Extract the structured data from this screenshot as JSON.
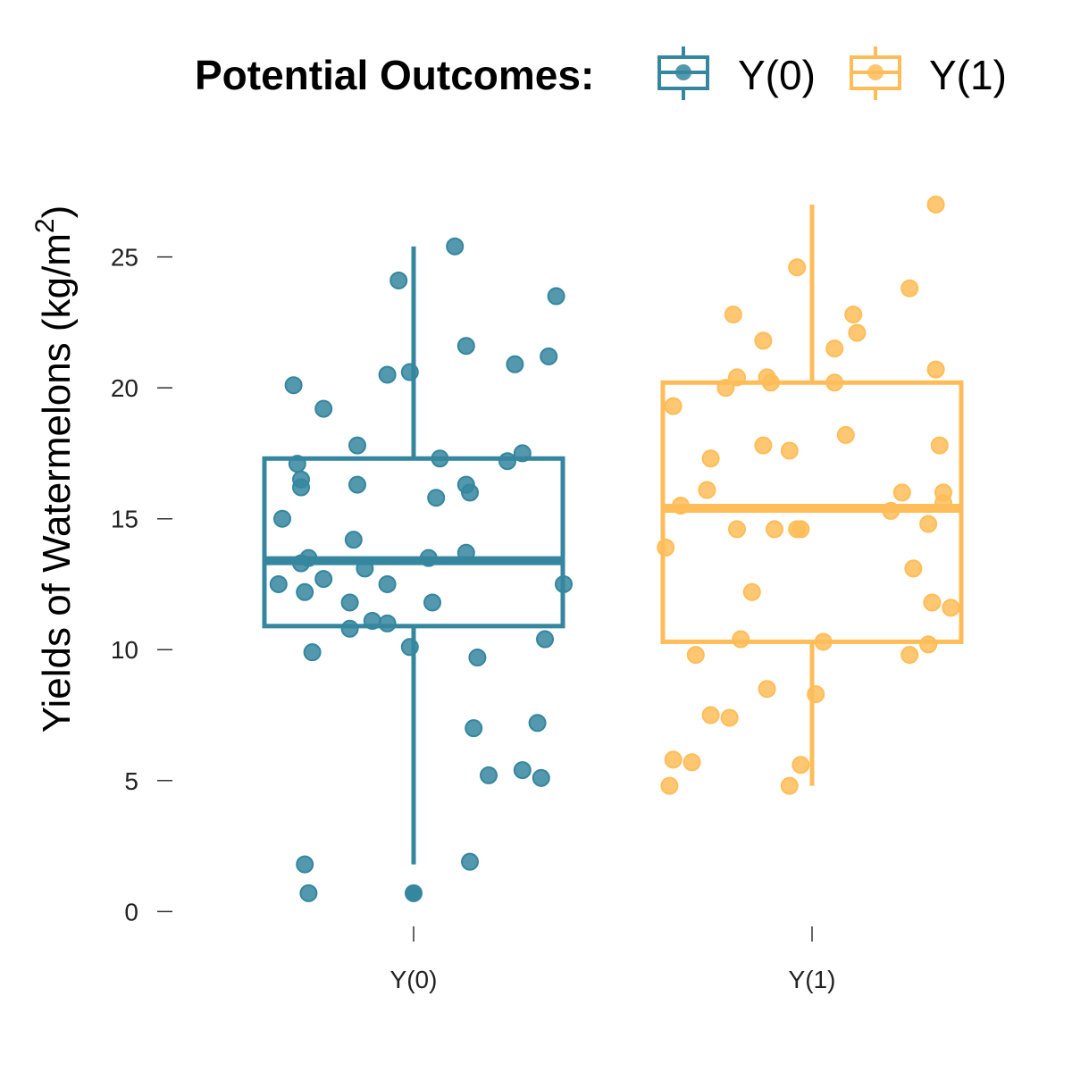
{
  "chart_data": {
    "type": "box",
    "legend": {
      "title": "Potential Outcomes:",
      "placement": "top",
      "entries": [
        "Y(0)",
        "Y(1)"
      ]
    },
    "ylabel": "Yields of Watermelons (kg/m",
    "ylabel_superscript": "2",
    "ylabel_close": ")",
    "xlabel": "",
    "categories": [
      "Y(0)",
      "Y(1)"
    ],
    "ylim": [
      -0.5,
      28.5
    ],
    "yticks": [
      0,
      5,
      10,
      15,
      20,
      25
    ],
    "grid": false,
    "series": [
      {
        "name": "Y(0)",
        "color": "#35869F",
        "box": {
          "whisker_low": 1.8,
          "q1": 10.9,
          "median": 13.4,
          "q3": 17.3,
          "whisker_high": 25.4
        },
        "outliers": [
          0.7
        ],
        "points": [
          {
            "jitter": -0.32,
            "y": 20.1
          },
          {
            "jitter": -0.24,
            "y": 19.2
          },
          {
            "jitter": -0.31,
            "y": 17.1
          },
          {
            "jitter": -0.3,
            "y": 16.5
          },
          {
            "jitter": -0.3,
            "y": 16.2
          },
          {
            "jitter": -0.35,
            "y": 15.0
          },
          {
            "jitter": -0.3,
            "y": 13.3
          },
          {
            "jitter": -0.28,
            "y": 13.5
          },
          {
            "jitter": -0.36,
            "y": 12.5
          },
          {
            "jitter": -0.24,
            "y": 12.7
          },
          {
            "jitter": -0.29,
            "y": 12.2
          },
          {
            "jitter": -0.27,
            "y": 9.9
          },
          {
            "jitter": -0.29,
            "y": 1.8
          },
          {
            "jitter": -0.28,
            "y": 0.7
          },
          {
            "jitter": -0.15,
            "y": 17.8
          },
          {
            "jitter": -0.15,
            "y": 16.3
          },
          {
            "jitter": -0.16,
            "y": 14.2
          },
          {
            "jitter": -0.13,
            "y": 13.1
          },
          {
            "jitter": -0.17,
            "y": 11.8
          },
          {
            "jitter": -0.17,
            "y": 10.8
          },
          {
            "jitter": -0.11,
            "y": 11.1
          },
          {
            "jitter": -0.07,
            "y": 11.0
          },
          {
            "jitter": -0.07,
            "y": 12.5
          },
          {
            "jitter": -0.07,
            "y": 20.5
          },
          {
            "jitter": -0.04,
            "y": 24.1
          },
          {
            "jitter": -0.01,
            "y": 20.6
          },
          {
            "jitter": -0.01,
            "y": 10.1
          },
          {
            "jitter": 0.04,
            "y": 13.5
          },
          {
            "jitter": 0.05,
            "y": 11.8
          },
          {
            "jitter": 0.06,
            "y": 15.8
          },
          {
            "jitter": 0.07,
            "y": 17.3
          },
          {
            "jitter": 0.11,
            "y": 25.4
          },
          {
            "jitter": 0.14,
            "y": 21.6
          },
          {
            "jitter": 0.14,
            "y": 16.3
          },
          {
            "jitter": 0.15,
            "y": 16.0
          },
          {
            "jitter": 0.14,
            "y": 13.7
          },
          {
            "jitter": 0.17,
            "y": 9.7
          },
          {
            "jitter": 0.16,
            "y": 7.0
          },
          {
            "jitter": 0.15,
            "y": 1.9
          },
          {
            "jitter": 0.2,
            "y": 5.2
          },
          {
            "jitter": 0.25,
            "y": 17.2
          },
          {
            "jitter": 0.27,
            "y": 20.9
          },
          {
            "jitter": 0.29,
            "y": 17.5
          },
          {
            "jitter": 0.29,
            "y": 5.4
          },
          {
            "jitter": 0.33,
            "y": 7.2
          },
          {
            "jitter": 0.34,
            "y": 5.1
          },
          {
            "jitter": 0.35,
            "y": 10.4
          },
          {
            "jitter": 0.36,
            "y": 21.2
          },
          {
            "jitter": 0.38,
            "y": 23.5
          },
          {
            "jitter": 0.4,
            "y": 12.5
          }
        ]
      },
      {
        "name": "Y(1)",
        "color": "#FFBD59",
        "box": {
          "whisker_low": 4.8,
          "q1": 10.3,
          "median": 15.4,
          "q3": 20.2,
          "whisker_high": 27.0
        },
        "outliers": [],
        "points": [
          {
            "jitter": -0.39,
            "y": 13.9
          },
          {
            "jitter": -0.37,
            "y": 19.3
          },
          {
            "jitter": -0.35,
            "y": 15.5
          },
          {
            "jitter": -0.37,
            "y": 5.8
          },
          {
            "jitter": -0.38,
            "y": 4.8
          },
          {
            "jitter": -0.32,
            "y": 5.7
          },
          {
            "jitter": -0.31,
            "y": 9.8
          },
          {
            "jitter": -0.27,
            "y": 17.3
          },
          {
            "jitter": -0.28,
            "y": 16.1
          },
          {
            "jitter": -0.27,
            "y": 7.5
          },
          {
            "jitter": -0.23,
            "y": 20.0
          },
          {
            "jitter": -0.21,
            "y": 22.8
          },
          {
            "jitter": -0.2,
            "y": 20.4
          },
          {
            "jitter": -0.2,
            "y": 14.6
          },
          {
            "jitter": -0.19,
            "y": 10.4
          },
          {
            "jitter": -0.22,
            "y": 7.4
          },
          {
            "jitter": -0.16,
            "y": 12.2
          },
          {
            "jitter": -0.13,
            "y": 21.8
          },
          {
            "jitter": -0.13,
            "y": 17.8
          },
          {
            "jitter": -0.12,
            "y": 20.4
          },
          {
            "jitter": -0.11,
            "y": 20.2
          },
          {
            "jitter": -0.1,
            "y": 14.6
          },
          {
            "jitter": -0.12,
            "y": 8.5
          },
          {
            "jitter": -0.06,
            "y": 17.6
          },
          {
            "jitter": -0.06,
            "y": 4.8
          },
          {
            "jitter": -0.04,
            "y": 14.6
          },
          {
            "jitter": -0.04,
            "y": 24.6
          },
          {
            "jitter": -0.03,
            "y": 14.6
          },
          {
            "jitter": -0.03,
            "y": 5.6
          },
          {
            "jitter": 0.01,
            "y": 8.3
          },
          {
            "jitter": 0.03,
            "y": 10.3
          },
          {
            "jitter": 0.06,
            "y": 20.2
          },
          {
            "jitter": 0.06,
            "y": 21.5
          },
          {
            "jitter": 0.09,
            "y": 18.2
          },
          {
            "jitter": 0.11,
            "y": 22.8
          },
          {
            "jitter": 0.12,
            "y": 22.1
          },
          {
            "jitter": 0.21,
            "y": 15.3
          },
          {
            "jitter": 0.24,
            "y": 16.0
          },
          {
            "jitter": 0.26,
            "y": 23.8
          },
          {
            "jitter": 0.27,
            "y": 13.1
          },
          {
            "jitter": 0.26,
            "y": 9.8
          },
          {
            "jitter": 0.31,
            "y": 14.8
          },
          {
            "jitter": 0.32,
            "y": 11.8
          },
          {
            "jitter": 0.31,
            "y": 10.2
          },
          {
            "jitter": 0.33,
            "y": 20.7
          },
          {
            "jitter": 0.33,
            "y": 27.0
          },
          {
            "jitter": 0.34,
            "y": 17.8
          },
          {
            "jitter": 0.35,
            "y": 15.6
          },
          {
            "jitter": 0.35,
            "y": 16.0
          },
          {
            "jitter": 0.37,
            "y": 11.6
          }
        ]
      }
    ]
  }
}
